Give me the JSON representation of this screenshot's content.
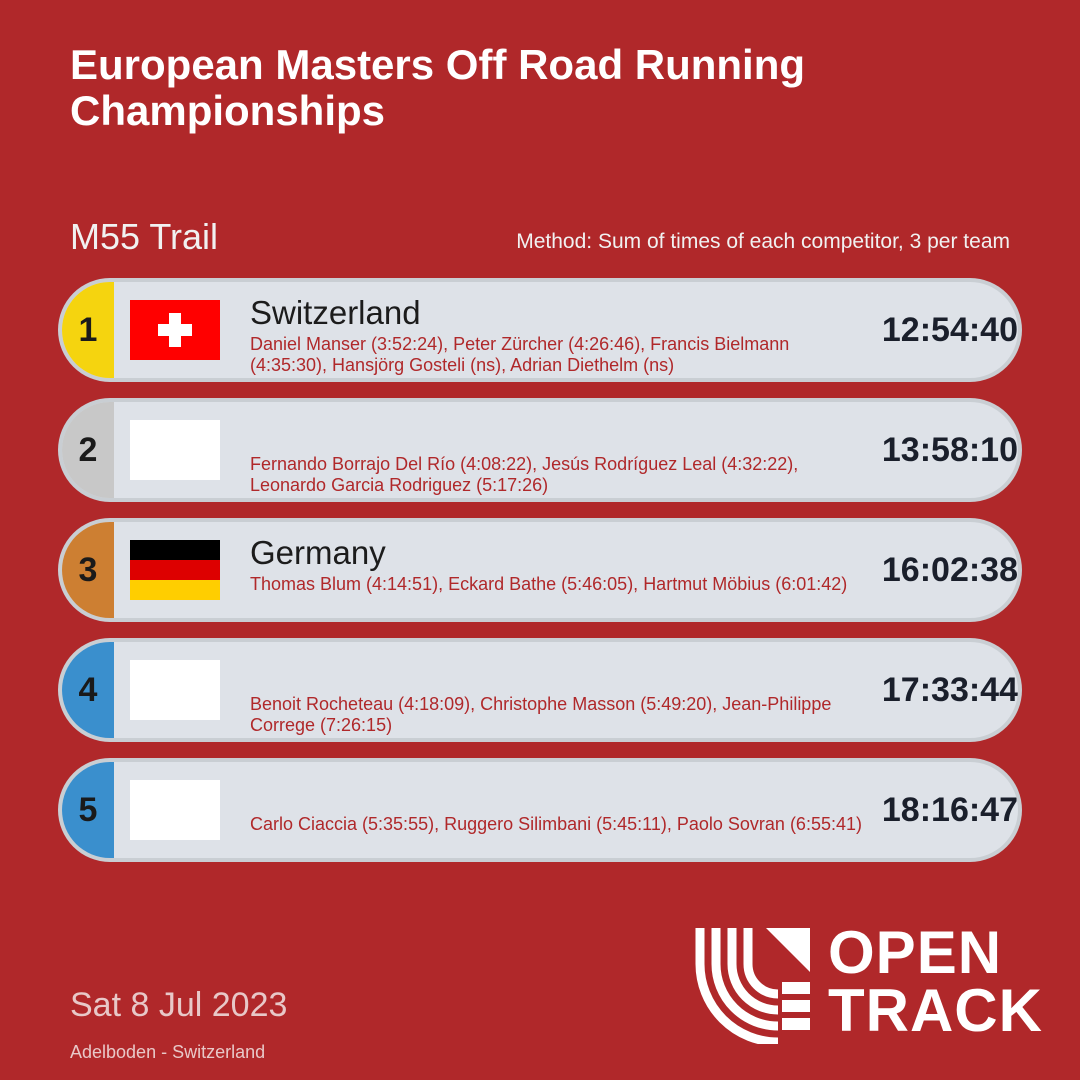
{
  "title": "European Masters Off Road Running Championships",
  "event": "M55 Trail",
  "method": "Method: Sum of times of each competitor, 3 per team",
  "colors": {
    "background": "#B0282A",
    "gold": "#F5D40F",
    "silver": "#C8C8C8",
    "bronze": "#CD7F32",
    "blue": "#3A8FCD"
  },
  "results": [
    {
      "rank": "1",
      "country": "Switzerland",
      "flag": "flag-switzerland",
      "members": "Daniel Manser (3:52:24), Peter Zürcher (4:26:46), Francis Bielmann (4:35:30), Hansjörg Gosteli (ns), Adrian Diethelm (ns)",
      "time": "12:54:40"
    },
    {
      "rank": "2",
      "country": "",
      "flag": "flag-blank",
      "members": "Fernando Borrajo Del Río (4:08:22), Jesús Rodríguez Leal (4:32:22), Leonardo Garcia Rodriguez (5:17:26)",
      "time": "13:58:10"
    },
    {
      "rank": "3",
      "country": "Germany",
      "flag": "flag-germany",
      "members": "Thomas Blum (4:14:51), Eckard Bathe (5:46:05), Hartmut Möbius (6:01:42)",
      "time": "16:02:38"
    },
    {
      "rank": "4",
      "country": "",
      "flag": "flag-blank",
      "members": "Benoit Rocheteau (4:18:09), Christophe Masson (5:49:20), Jean-Philippe Correge (7:26:15)",
      "time": "17:33:44"
    },
    {
      "rank": "5",
      "country": "",
      "flag": "flag-blank",
      "members": "Carlo Ciaccia (5:35:55), Ruggero Silimbani (5:45:11), Paolo Sovran (6:55:41)",
      "time": "18:16:47"
    }
  ],
  "date": "Sat 8 Jul 2023",
  "venue": "Adelboden - Switzerland",
  "logo": {
    "line1": "OPEN",
    "line2": "TRACK",
    "icon": "opentrack-lanes-icon"
  }
}
